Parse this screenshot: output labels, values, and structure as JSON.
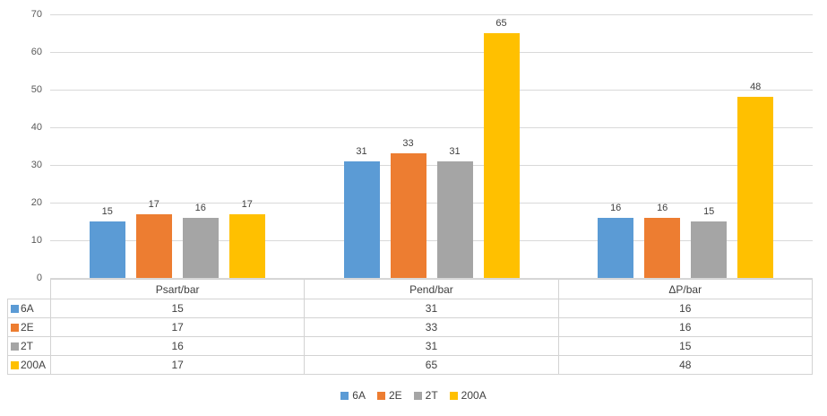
{
  "chart_data": {
    "type": "bar",
    "title": "",
    "categories": [
      "Psart/bar",
      "Pend/bar",
      "ΔP/bar"
    ],
    "series": [
      {
        "name": "6A",
        "color": "#5B9BD5",
        "values": [
          15,
          31,
          16
        ]
      },
      {
        "name": "2E",
        "color": "#ED7D31",
        "values": [
          17,
          33,
          16
        ]
      },
      {
        "name": "2T",
        "color": "#A5A5A5",
        "values": [
          16,
          31,
          15
        ]
      },
      {
        "name": "200A",
        "color": "#FFC000",
        "values": [
          17,
          65,
          48
        ]
      }
    ],
    "ylim": [
      0,
      70
    ],
    "yticks": [
      0,
      10,
      20,
      30,
      40,
      50,
      60,
      70
    ],
    "grid": true,
    "data_labels": true,
    "data_table_shown": true,
    "legend_position": "bottom",
    "legend_entries": [
      "6A",
      "2E",
      "2T",
      "200A"
    ]
  },
  "colors": {
    "gridline": "#d9d9d9",
    "table_border": "#d3d3d3",
    "axis_text": "#595959",
    "label_text": "#404040",
    "background": "#ffffff"
  }
}
